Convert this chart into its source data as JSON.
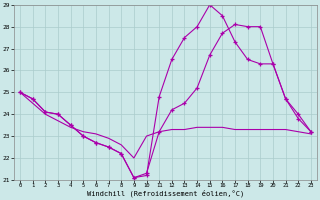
{
  "xlabel": "Windchill (Refroidissement éolien,°C)",
  "xlim_min": -0.5,
  "xlim_max": 23.5,
  "ylim_min": 21,
  "ylim_max": 29,
  "xticks": [
    0,
    1,
    2,
    3,
    4,
    5,
    6,
    7,
    8,
    9,
    10,
    11,
    12,
    13,
    14,
    15,
    16,
    17,
    18,
    19,
    20,
    21,
    22,
    23
  ],
  "yticks": [
    21,
    22,
    23,
    24,
    25,
    26,
    27,
    28,
    29
  ],
  "bg_color": "#cce8e8",
  "grid_color": "#aacccc",
  "line_color": "#aa00aa",
  "line1_x": [
    0,
    1,
    2,
    3,
    4,
    5,
    6,
    7,
    8,
    9,
    10,
    11,
    12,
    13,
    14,
    15,
    16,
    17,
    18,
    19,
    20,
    21,
    22,
    23
  ],
  "line1_y": [
    25.0,
    24.7,
    24.1,
    24.0,
    23.5,
    23.0,
    22.7,
    22.5,
    22.2,
    21.1,
    21.2,
    24.8,
    26.5,
    27.5,
    28.0,
    29.0,
    28.5,
    27.3,
    26.5,
    26.3,
    26.3,
    24.7,
    24.0,
    23.2
  ],
  "line2_x": [
    0,
    1,
    2,
    3,
    4,
    5,
    6,
    7,
    8,
    9,
    10,
    11,
    12,
    13,
    14,
    15,
    16,
    17,
    18,
    19,
    20,
    21,
    22,
    23
  ],
  "line2_y": [
    25.0,
    24.7,
    24.1,
    24.0,
    23.5,
    23.0,
    22.7,
    22.5,
    22.2,
    21.1,
    21.3,
    23.2,
    24.2,
    24.5,
    25.2,
    26.7,
    27.7,
    28.1,
    28.0,
    28.0,
    26.3,
    24.7,
    23.8,
    23.2
  ],
  "line3_x": [
    0,
    1,
    2,
    3,
    4,
    5,
    6,
    7,
    8,
    9,
    10,
    11,
    12,
    13,
    14,
    15,
    16,
    17,
    18,
    19,
    20,
    21,
    22,
    23
  ],
  "line3_y": [
    25.0,
    24.5,
    24.0,
    23.7,
    23.4,
    23.2,
    23.1,
    22.9,
    22.6,
    22.0,
    23.0,
    23.2,
    23.3,
    23.3,
    23.4,
    23.4,
    23.4,
    23.3,
    23.3,
    23.3,
    23.3,
    23.3,
    23.2,
    23.1
  ]
}
